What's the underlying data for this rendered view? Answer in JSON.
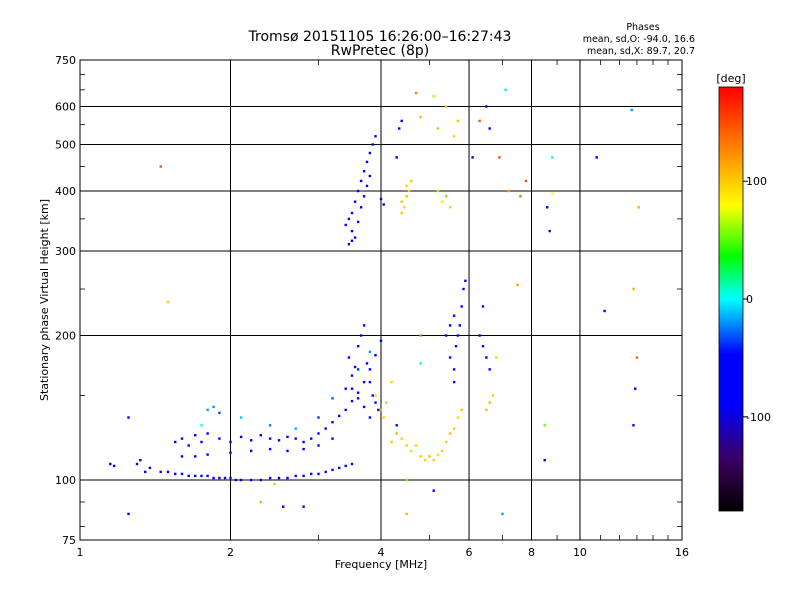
{
  "chart_data": {
    "type": "scatter",
    "title": "Tromsø 20151105 16:26:00–16:27:43",
    "subtitle": "RwPretec (8p)",
    "xlabel": "Frequency [MHz]",
    "ylabel": "Stationary phase Virtual Height [km]",
    "x_scale": "log",
    "y_scale": "log",
    "xlim": [
      1,
      16
    ],
    "ylim": [
      75,
      750
    ],
    "x_ticks": [
      1,
      2,
      4,
      6,
      8,
      10,
      16
    ],
    "x_tick_labels": [
      "1",
      "2",
      "4",
      "6",
      "8",
      "10",
      "16"
    ],
    "y_ticks": [
      75,
      100,
      200,
      300,
      400,
      500,
      600,
      750
    ],
    "y_tick_labels": [
      "75",
      "100",
      "200",
      "300",
      "400",
      "500",
      "600",
      "750"
    ],
    "grid": true,
    "stats": {
      "heading": "Phases",
      "line1": "mean, sd,O: -94.0, 16.6",
      "line2": "mean, sd,X: 89.7, 20.7"
    },
    "colorbar": {
      "label": "[deg]",
      "ticks": [
        100,
        0,
        -100
      ],
      "tick_labels": [
        "100",
        "0",
        "-100"
      ],
      "range": [
        -180,
        180
      ],
      "stops": [
        "#000000",
        "#3b0060",
        "#0000ff",
        "#0000ff",
        "#00ffff",
        "#00ff00",
        "#ffff00",
        "#ff7f00",
        "#ff0000"
      ]
    },
    "series": [
      {
        "cluster_note": "",
        "points": [
          [
            1.15,
            108,
            -95
          ],
          [
            1.17,
            107,
            -90
          ],
          [
            1.25,
            135,
            -98
          ],
          [
            1.3,
            108,
            -92
          ],
          [
            1.32,
            110,
            -95
          ],
          [
            1.35,
            104,
            -88
          ],
          [
            1.38,
            106,
            -96
          ],
          [
            1.45,
            104,
            -100
          ],
          [
            1.5,
            104,
            -90
          ],
          [
            1.55,
            103,
            -95
          ],
          [
            1.6,
            103,
            -92
          ],
          [
            1.65,
            102,
            -99
          ],
          [
            1.7,
            102,
            -95
          ],
          [
            1.75,
            102,
            -90
          ],
          [
            1.8,
            102,
            -96
          ],
          [
            1.85,
            101,
            -93
          ],
          [
            1.9,
            101,
            -98
          ],
          [
            1.95,
            101,
            -90
          ],
          [
            2.0,
            101,
            -95
          ],
          [
            2.05,
            100,
            -97
          ],
          [
            2.1,
            100,
            -90
          ],
          [
            2.2,
            100,
            -92
          ],
          [
            2.3,
            100,
            -95
          ],
          [
            2.4,
            101,
            -89
          ],
          [
            2.5,
            101,
            -96
          ],
          [
            2.6,
            101,
            -91
          ],
          [
            2.7,
            102,
            -94
          ],
          [
            2.8,
            102,
            -97
          ],
          [
            2.9,
            103,
            -90
          ],
          [
            3.0,
            103,
            -92
          ],
          [
            3.1,
            104,
            -95
          ],
          [
            3.2,
            105,
            -93
          ],
          [
            3.3,
            106,
            -96
          ],
          [
            3.4,
            107,
            -90
          ],
          [
            3.5,
            108,
            -94
          ],
          [
            1.55,
            120,
            -95
          ],
          [
            1.6,
            122,
            -92
          ],
          [
            1.65,
            118,
            -98
          ],
          [
            1.7,
            124,
            -94
          ],
          [
            1.75,
            120,
            -96
          ],
          [
            1.8,
            125,
            -90
          ],
          [
            1.9,
            122,
            -92
          ],
          [
            2.0,
            120,
            -95
          ],
          [
            2.1,
            123,
            -97
          ],
          [
            2.2,
            121,
            -90
          ],
          [
            2.3,
            124,
            -88
          ],
          [
            2.4,
            122,
            -93
          ],
          [
            2.5,
            121,
            -96
          ],
          [
            2.6,
            123,
            -90
          ],
          [
            2.7,
            122,
            -94
          ],
          [
            2.8,
            120,
            -97
          ],
          [
            2.9,
            122,
            -91
          ],
          [
            3.0,
            125,
            -92
          ],
          [
            3.1,
            128,
            -95
          ],
          [
            3.2,
            132,
            -96
          ],
          [
            3.3,
            136,
            -92
          ],
          [
            3.4,
            140,
            -94
          ],
          [
            3.5,
            146,
            -90
          ],
          [
            3.6,
            152,
            -95
          ],
          [
            3.7,
            160,
            -92
          ],
          [
            3.8,
            170,
            -93
          ],
          [
            3.9,
            182,
            -96
          ],
          [
            4.0,
            195,
            -92
          ],
          [
            1.6,
            112,
            -95
          ],
          [
            1.7,
            112,
            -90
          ],
          [
            1.8,
            113,
            -97
          ],
          [
            2.0,
            114,
            -94
          ],
          [
            2.2,
            115,
            -96
          ],
          [
            2.4,
            116,
            -91
          ],
          [
            2.6,
            115,
            -93
          ],
          [
            2.8,
            116,
            -90
          ],
          [
            3.0,
            118,
            -95
          ],
          [
            3.2,
            122,
            -92
          ],
          [
            1.9,
            138,
            -55
          ],
          [
            1.85,
            142,
            -40
          ],
          [
            2.1,
            135,
            -30
          ],
          [
            2.4,
            130,
            -45
          ],
          [
            2.7,
            128,
            -35
          ],
          [
            3.0,
            135,
            -60
          ],
          [
            3.2,
            148,
            -50
          ],
          [
            3.4,
            155,
            -70
          ],
          [
            3.6,
            170,
            -60
          ],
          [
            3.8,
            185,
            -40
          ],
          [
            3.45,
            180,
            -95
          ],
          [
            3.5,
            165,
            -90
          ],
          [
            3.55,
            172,
            -92
          ],
          [
            3.6,
            190,
            -96
          ],
          [
            3.65,
            200,
            -94
          ],
          [
            3.7,
            210,
            -90
          ],
          [
            3.75,
            175,
            -95
          ],
          [
            3.8,
            160,
            -93
          ],
          [
            3.85,
            150,
            -92
          ],
          [
            3.9,
            145,
            -96
          ],
          [
            3.95,
            140,
            -90
          ],
          [
            3.5,
            155,
            -98
          ],
          [
            3.6,
            148,
            -91
          ],
          [
            3.7,
            142,
            -94
          ],
          [
            3.8,
            135,
            -97
          ],
          [
            3.4,
            340,
            -95
          ],
          [
            3.45,
            350,
            -92
          ],
          [
            3.5,
            360,
            -98
          ],
          [
            3.55,
            380,
            -94
          ],
          [
            3.6,
            400,
            -96
          ],
          [
            3.65,
            420,
            -90
          ],
          [
            3.7,
            440,
            -93
          ],
          [
            3.75,
            460,
            -95
          ],
          [
            3.8,
            480,
            -92
          ],
          [
            3.5,
            330,
            -96
          ],
          [
            3.55,
            320,
            -94
          ],
          [
            3.6,
            345,
            -97
          ],
          [
            3.65,
            370,
            -91
          ],
          [
            3.7,
            390,
            -94
          ],
          [
            3.75,
            410,
            -95
          ],
          [
            3.8,
            430,
            -93
          ],
          [
            3.85,
            500,
            -95
          ],
          [
            3.9,
            520,
            -92
          ],
          [
            3.45,
            310,
            -95
          ],
          [
            3.5,
            315,
            -91
          ],
          [
            4.0,
            385,
            -95
          ],
          [
            4.05,
            375,
            -92
          ],
          [
            4.3,
            470,
            -96
          ],
          [
            4.35,
            540,
            -94
          ],
          [
            4.4,
            560,
            -92
          ],
          [
            4.2,
            120,
            105
          ],
          [
            4.3,
            125,
            110
          ],
          [
            4.4,
            122,
            98
          ],
          [
            4.5,
            118,
            102
          ],
          [
            4.6,
            115,
            95
          ],
          [
            4.7,
            118,
            100
          ],
          [
            4.8,
            112,
            104
          ],
          [
            4.9,
            110,
            96
          ],
          [
            5.0,
            112,
            108
          ],
          [
            5.1,
            110,
            100
          ],
          [
            5.2,
            113,
            94
          ],
          [
            5.3,
            115,
            102
          ],
          [
            5.4,
            120,
            98
          ],
          [
            5.5,
            125,
            106
          ],
          [
            5.6,
            128,
            100
          ],
          [
            5.7,
            135,
            96
          ],
          [
            5.8,
            140,
            104
          ],
          [
            3.9,
            150,
            100
          ],
          [
            4.0,
            140,
            110
          ],
          [
            4.05,
            135,
            95
          ],
          [
            4.1,
            145,
            102
          ],
          [
            4.2,
            160,
            98
          ],
          [
            4.4,
            380,
            105
          ],
          [
            4.45,
            370,
            98
          ],
          [
            4.5,
            390,
            110
          ],
          [
            4.55,
            400,
            100
          ],
          [
            4.5,
            410,
            96
          ],
          [
            4.6,
            420,
            104
          ],
          [
            4.4,
            360,
            102
          ],
          [
            5.2,
            400,
            100
          ],
          [
            5.3,
            380,
            70
          ],
          [
            5.4,
            390,
            45
          ],
          [
            5.5,
            370,
            60
          ],
          [
            5.6,
            520,
            100
          ],
          [
            5.7,
            560,
            105
          ],
          [
            5.2,
            540,
            110
          ],
          [
            5.5,
            180,
            -95
          ],
          [
            5.6,
            170,
            -92
          ],
          [
            5.65,
            190,
            -96
          ],
          [
            5.7,
            200,
            -94
          ],
          [
            5.75,
            210,
            -90
          ],
          [
            5.8,
            230,
            -93
          ],
          [
            5.85,
            250,
            -95
          ],
          [
            5.9,
            260,
            -92
          ],
          [
            5.6,
            220,
            -96
          ],
          [
            5.5,
            210,
            -94
          ],
          [
            5.4,
            200,
            -92
          ],
          [
            5.6,
            160,
            -94
          ],
          [
            6.3,
            200,
            -95
          ],
          [
            6.4,
            190,
            -92
          ],
          [
            6.5,
            180,
            -94
          ],
          [
            6.6,
            170,
            -90
          ],
          [
            6.4,
            230,
            -96
          ],
          [
            6.5,
            140,
            105
          ],
          [
            6.6,
            145,
            110
          ],
          [
            6.7,
            150,
            100
          ],
          [
            6.8,
            180,
            98
          ],
          [
            8.5,
            130,
            45
          ],
          [
            8.5,
            110,
            60
          ],
          [
            8.8,
            395,
            80
          ],
          [
            8.6,
            370,
            -95
          ],
          [
            8.8,
            470,
            -20
          ],
          [
            8.7,
            330,
            -120
          ],
          [
            7.1,
            650,
            -25
          ],
          [
            7.2,
            400,
            120
          ],
          [
            7.6,
            390,
            135
          ],
          [
            7.8,
            420,
            150
          ],
          [
            7.5,
            255,
            120
          ],
          [
            10.8,
            470,
            -100
          ],
          [
            11.2,
            225,
            -100
          ],
          [
            12.8,
            250,
            110
          ],
          [
            12.7,
            590,
            -40
          ],
          [
            12.9,
            155,
            -95
          ],
          [
            13.1,
            370,
            110
          ],
          [
            12.8,
            130,
            -100
          ],
          [
            13.0,
            180,
            140
          ],
          [
            1.45,
            450,
            150
          ],
          [
            1.5,
            235,
            100
          ],
          [
            1.75,
            130,
            -20
          ],
          [
            1.8,
            140,
            -40
          ],
          [
            2.3,
            90,
            110
          ],
          [
            2.45,
            98,
            100
          ],
          [
            2.55,
            88,
            -95
          ],
          [
            2.8,
            88,
            -95
          ],
          [
            4.5,
            100,
            45
          ],
          [
            5.1,
            95,
            -95
          ],
          [
            7.0,
            85,
            -40
          ],
          [
            8.5,
            110,
            -95
          ],
          [
            1.25,
            85,
            -95
          ],
          [
            4.5,
            85,
            110
          ],
          [
            4.3,
            130,
            -95
          ],
          [
            4.8,
            175,
            -20
          ],
          [
            4.8,
            200,
            130
          ],
          [
            6.3,
            560,
            150
          ],
          [
            6.6,
            540,
            -100
          ],
          [
            5.4,
            600,
            100
          ],
          [
            4.8,
            570,
            110
          ],
          [
            6.1,
            470,
            -95
          ],
          [
            6.9,
            470,
            150
          ],
          [
            5.1,
            630,
            60
          ],
          [
            4.7,
            640,
            130
          ],
          [
            6.5,
            600,
            -120
          ]
        ]
      }
    ]
  }
}
